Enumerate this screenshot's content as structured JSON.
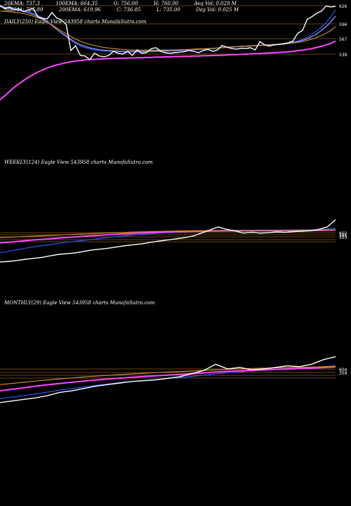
{
  "header": {
    "row1": [
      {
        "label": "20EMA:",
        "value": "737.3"
      },
      {
        "label": "100EMA:",
        "value": "664.35"
      },
      {
        "label": "O:",
        "value": "756.00"
      },
      {
        "label": "H:",
        "value": "760.00"
      },
      {
        "label": "Avg Vol:",
        "value": "0.029 M"
      }
    ],
    "row2": [
      {
        "label": "30EMA:",
        "value": "725.89"
      },
      {
        "label": "200EMA:",
        "value": "619.96"
      },
      {
        "label": "C:",
        "value": "736.85"
      },
      {
        "label": "L:",
        "value": "735.00"
      },
      {
        "label": "Day Vol:",
        "value": "0.025 M"
      }
    ]
  },
  "colors": {
    "background": "#000000",
    "price": "#ffffff",
    "ema_blue": "#2a55ff",
    "ema_light": "#9aa0ff",
    "ema_magenta": "#ff44ff",
    "ema_orange": "#c88a2a",
    "level_line": "#8a5a10"
  },
  "chart_data": [
    {
      "type": "line",
      "label": "DAILY(250) Eagle  View  543958 charts MunafaSutra.com",
      "yticks": [
        "626",
        "596",
        "567",
        "539"
      ],
      "series": [
        {
          "role": "price",
          "color": "#ffffff",
          "values": [
            741,
            728,
            735,
            725,
            728,
            718,
            724,
            730,
            700,
            694,
            692,
            715,
            695,
            688,
            672,
            578,
            595,
            560,
            558,
            545,
            568,
            558,
            555,
            560,
            575,
            568,
            565,
            575,
            560,
            580,
            568,
            570,
            585,
            588,
            575,
            570,
            568,
            570,
            572,
            574,
            578,
            575,
            570,
            578,
            582,
            575,
            580,
            596,
            590,
            585,
            583,
            586,
            585,
            588,
            580,
            610,
            598,
            594,
            598,
            600,
            602,
            606,
            612,
            640,
            650,
            690,
            700,
            712,
            720,
            738,
            735,
            736.85
          ]
        },
        {
          "role": "ema",
          "color": "#2a55ff",
          "values": [
            738,
            735,
            732,
            729,
            726,
            722,
            718,
            712,
            704,
            696,
            684,
            670,
            654,
            640,
            628,
            615,
            603,
            594,
            588,
            584,
            580,
            578,
            576,
            575,
            574,
            573,
            573,
            572,
            572,
            572,
            572,
            573,
            573,
            574,
            574,
            575,
            575,
            576,
            577,
            578,
            579,
            580,
            581,
            582,
            583,
            584,
            586,
            588,
            589,
            590,
            591,
            592,
            593,
            594,
            595,
            597,
            598,
            599,
            600,
            601,
            603,
            605,
            608,
            612,
            618,
            626,
            636,
            648,
            662,
            678,
            700,
            725
          ]
        },
        {
          "role": "ema",
          "color": "#9aa0ff",
          "values": [
            736,
            733,
            730,
            727,
            723,
            719,
            714,
            708,
            700,
            692,
            681,
            668,
            654,
            641,
            630,
            618,
            607,
            599,
            593,
            588,
            584,
            581,
            579,
            578,
            577,
            576,
            575,
            575,
            575,
            575,
            575,
            575,
            576,
            576,
            577,
            577,
            578,
            578,
            579,
            580,
            581,
            582,
            583,
            584,
            585,
            586,
            587,
            589,
            590,
            591,
            592,
            593,
            594,
            595,
            596,
            597,
            598,
            599,
            600,
            601,
            603,
            605,
            607,
            610,
            614,
            620,
            628,
            638,
            650,
            664,
            682,
            702
          ]
        },
        {
          "role": "ema",
          "color": "#c88a2a",
          "values": [
            720,
            719,
            718,
            716,
            714,
            711,
            707,
            702,
            696,
            689,
            680,
            670,
            659,
            648,
            638,
            628,
            619,
            611,
            605,
            600,
            596,
            592,
            589,
            587,
            585,
            583,
            582,
            581,
            580,
            579,
            579,
            579,
            579,
            579,
            579,
            580,
            580,
            580,
            581,
            581,
            582,
            583,
            584,
            584,
            585,
            586,
            587,
            588,
            589,
            590,
            591,
            592,
            593,
            594,
            595,
            596,
            597,
            598,
            599,
            600,
            601,
            603,
            605,
            607,
            610,
            614,
            619,
            625,
            632,
            640,
            650,
            664
          ]
        },
        {
          "role": "ema",
          "color": "#ff44ff",
          "values": [
            400,
            415,
            430,
            445,
            458,
            470,
            481,
            491,
            500,
            508,
            515,
            521,
            526,
            530,
            534,
            537,
            540,
            542,
            544,
            545,
            546,
            547,
            548,
            549,
            549,
            550,
            550,
            551,
            551,
            552,
            552,
            553,
            553,
            554,
            554,
            555,
            555,
            556,
            556,
            557,
            557,
            558,
            558,
            559,
            559,
            560,
            560,
            561,
            562,
            563,
            563,
            564,
            565,
            566,
            567,
            567,
            568,
            569,
            570,
            571,
            572,
            573,
            575,
            577,
            579,
            582,
            585,
            589,
            593,
            598,
            604,
            612
          ]
        }
      ]
    },
    {
      "type": "line",
      "label": "WEEKLY(124) Eagle  View  543958 charts MunafaSutra.com",
      "yticks": [
        "602",
        "585",
        "553"
      ],
      "series": [
        {
          "role": "price",
          "color": "#ffffff",
          "values": [
            180,
            188,
            200,
            215,
            228,
            240,
            262,
            280,
            290,
            300,
            320,
            338,
            350,
            362,
            380,
            395,
            408,
            420,
            440,
            455,
            470,
            485,
            500,
            520,
            560,
            600,
            640,
            610,
            590,
            560,
            570,
            560,
            565,
            575,
            570,
            580,
            585,
            590,
            610,
            640,
            736.85
          ]
        },
        {
          "role": "ema",
          "color": "#2a55ff",
          "values": [
            300,
            320,
            340,
            360,
            380,
            395,
            410,
            425,
            440,
            452,
            465,
            478,
            490,
            502,
            514,
            525,
            535,
            545,
            552,
            560,
            566,
            572,
            578,
            583,
            588,
            592,
            595,
            597,
            598,
            598,
            598,
            599,
            599,
            600,
            600,
            601,
            602,
            603,
            606,
            612,
            625
          ]
        },
        {
          "role": "ema",
          "color": "#ff44ff",
          "values": [
            430,
            440,
            450,
            460,
            470,
            478,
            486,
            494,
            502,
            510,
            518,
            525,
            532,
            539,
            545,
            551,
            557,
            562,
            567,
            571,
            574,
            577,
            580,
            582,
            584,
            586,
            587,
            588,
            588,
            589,
            589,
            590,
            590,
            591,
            591,
            592,
            592,
            593,
            594,
            596,
            600
          ]
        },
        {
          "role": "ema",
          "color": "#c88a2a",
          "values": [
            500,
            505,
            510,
            515,
            520,
            525,
            530,
            535,
            540,
            545,
            550,
            554,
            558,
            562,
            566,
            570,
            574,
            577,
            580,
            583,
            585,
            587,
            589,
            591,
            592,
            593,
            594,
            594,
            594,
            595,
            595,
            595,
            596,
            596,
            596,
            597,
            597,
            598,
            599,
            601,
            604
          ]
        }
      ]
    },
    {
      "type": "line",
      "label": "MONTHLY(29) Eagle  View  543958 charts MunafaSutra.com",
      "yticks": [
        "604",
        "359"
      ],
      "series": [
        {
          "role": "price",
          "color": "#ffffff",
          "values": [
            150,
            170,
            190,
            210,
            240,
            280,
            300,
            330,
            360,
            380,
            400,
            420,
            430,
            440,
            460,
            480,
            520,
            560,
            640,
            580,
            600,
            570,
            580,
            600,
            620,
            610,
            640,
            700,
            736.85
          ]
        },
        {
          "role": "ema",
          "color": "#2a55ff",
          "values": [
            200,
            220,
            240,
            260,
            285,
            310,
            330,
            350,
            370,
            388,
            405,
            420,
            432,
            445,
            457,
            470,
            485,
            500,
            520,
            532,
            544,
            554,
            563,
            572,
            580,
            588,
            596,
            608,
            620
          ]
        },
        {
          "role": "ema",
          "color": "#ff44ff",
          "values": [
            300,
            320,
            340,
            360,
            378,
            395,
            410,
            425,
            438,
            450,
            462,
            473,
            483,
            493,
            502,
            511,
            520,
            530,
            542,
            550,
            557,
            563,
            569,
            575,
            580,
            585,
            590,
            598,
            606
          ]
        },
        {
          "role": "ema",
          "color": "#c88a2a",
          "values": [
            380,
            395,
            410,
            425,
            440,
            453,
            465,
            477,
            488,
            498,
            508,
            517,
            525,
            533,
            540,
            547,
            554,
            561,
            570,
            576,
            581,
            586,
            590,
            594,
            598,
            601,
            604,
            609,
            614
          ]
        }
      ]
    }
  ]
}
